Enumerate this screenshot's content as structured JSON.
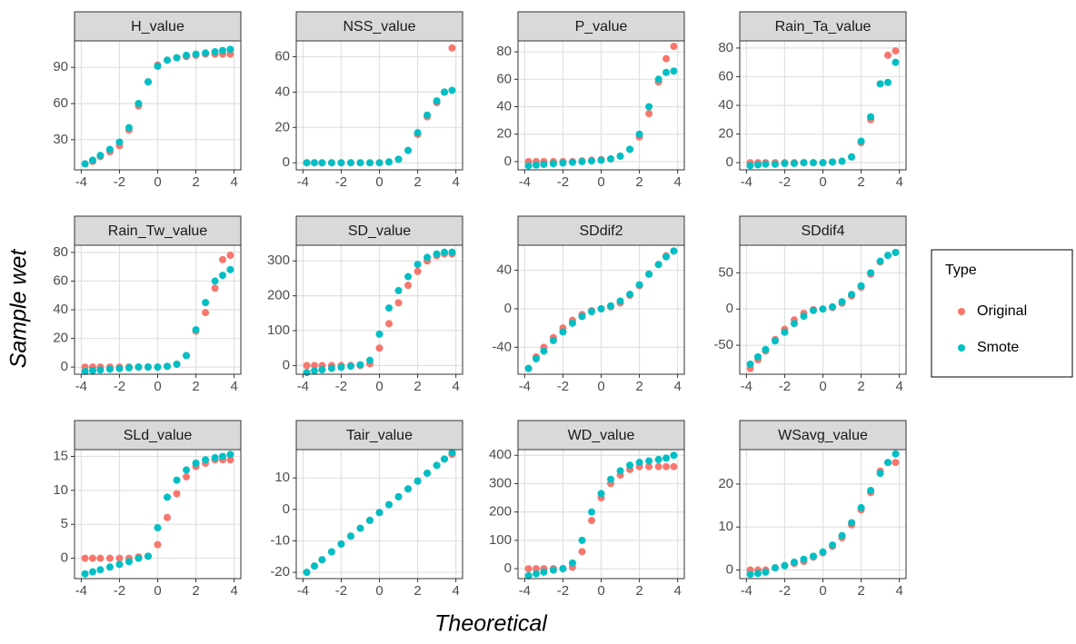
{
  "x_label": "Theoretical",
  "y_label": "Sample wet",
  "legend_title": "Type",
  "chart_data": [
    {
      "type": "scatter",
      "title": "H_value",
      "xlim": [
        -4.35,
        4.35
      ],
      "xticks": [
        -4,
        -2,
        0,
        2,
        4
      ],
      "ylim": [
        5,
        112
      ],
      "yticks": [
        30,
        60,
        90
      ],
      "grid": true,
      "x": [
        -3.8,
        -3.4,
        -3,
        -2.5,
        -2,
        -1.5,
        -1,
        -0.5,
        0,
        0.5,
        1,
        1.5,
        2,
        2.5,
        3,
        3.4,
        3.8
      ],
      "series": [
        {
          "name": "Original",
          "color": "#f8766d",
          "values": [
            10,
            12,
            16,
            20,
            25,
            38,
            58,
            78,
            92,
            96,
            98,
            99,
            100,
            101,
            101,
            101,
            101
          ]
        },
        {
          "name": "Smote",
          "color": "#00bfc4",
          "values": [
            10,
            13,
            17,
            22,
            28,
            40,
            60,
            78,
            91,
            96,
            98,
            100,
            101,
            102,
            103,
            104,
            105
          ]
        }
      ]
    },
    {
      "type": "scatter",
      "title": "NSS_value",
      "xlim": [
        -4.35,
        4.35
      ],
      "xticks": [
        -4,
        -2,
        0,
        2,
        4
      ],
      "ylim": [
        -4,
        69
      ],
      "yticks": [
        0,
        20,
        40,
        60
      ],
      "grid": true,
      "x": [
        -3.8,
        -3.4,
        -3,
        -2.5,
        -2,
        -1.5,
        -1,
        -0.5,
        0,
        0.5,
        1,
        1.5,
        2,
        2.5,
        3,
        3.4,
        3.8
      ],
      "series": [
        {
          "name": "Original",
          "color": "#f8766d",
          "values": [
            0,
            0,
            0,
            0,
            0,
            0,
            0,
            0,
            0,
            0.5,
            2,
            7,
            16,
            26,
            34,
            40,
            65
          ]
        },
        {
          "name": "Smote",
          "color": "#00bfc4",
          "values": [
            0,
            0,
            0,
            0,
            0,
            0,
            0,
            0,
            0,
            0.5,
            2,
            7,
            17,
            27,
            35,
            40,
            41
          ]
        }
      ]
    },
    {
      "type": "scatter",
      "title": "P_value",
      "xlim": [
        -4.35,
        4.35
      ],
      "xticks": [
        -4,
        -2,
        0,
        2,
        4
      ],
      "ylim": [
        -6,
        88
      ],
      "yticks": [
        0,
        20,
        40,
        60,
        80
      ],
      "grid": true,
      "x": [
        -3.8,
        -3.4,
        -3,
        -2.5,
        -2,
        -1.5,
        -1,
        -0.5,
        0,
        0.5,
        1,
        1.5,
        2,
        2.5,
        3,
        3.4,
        3.8
      ],
      "series": [
        {
          "name": "Original",
          "color": "#f8766d",
          "values": [
            0,
            0,
            0,
            0,
            0,
            0,
            0.5,
            1,
            1.5,
            2,
            4,
            9,
            18,
            35,
            58,
            75,
            84
          ]
        },
        {
          "name": "Smote",
          "color": "#00bfc4",
          "values": [
            -3,
            -2.5,
            -2,
            -1.5,
            -1,
            -0.5,
            0,
            0.5,
            1,
            2,
            4,
            9,
            20,
            40,
            60,
            65,
            66
          ]
        }
      ]
    },
    {
      "type": "scatter",
      "title": "Rain_Ta_value",
      "xlim": [
        -4.35,
        4.35
      ],
      "xticks": [
        -4,
        -2,
        0,
        2,
        4
      ],
      "ylim": [
        -5,
        85
      ],
      "yticks": [
        0,
        20,
        40,
        60,
        80
      ],
      "grid": true,
      "x": [
        -3.8,
        -3.4,
        -3,
        -2.5,
        -2,
        -1.5,
        -1,
        -0.5,
        0,
        0.5,
        1,
        1.5,
        2,
        2.5,
        3,
        3.4,
        3.8
      ],
      "series": [
        {
          "name": "Original",
          "color": "#f8766d",
          "values": [
            0,
            0,
            0,
            0,
            0,
            0,
            0,
            0,
            0,
            0.5,
            1,
            4,
            14,
            30,
            55,
            75,
            78
          ]
        },
        {
          "name": "Smote",
          "color": "#00bfc4",
          "values": [
            -2,
            -1.5,
            -1,
            -1,
            -0.5,
            -0.5,
            0,
            0,
            0,
            0.5,
            1,
            4,
            15,
            32,
            55,
            56,
            70
          ]
        }
      ]
    },
    {
      "type": "scatter",
      "title": "Rain_Tw_value",
      "xlim": [
        -4.35,
        4.35
      ],
      "xticks": [
        -4,
        -2,
        0,
        2,
        4
      ],
      "ylim": [
        -5,
        85
      ],
      "yticks": [
        0,
        20,
        40,
        60,
        80
      ],
      "grid": true,
      "x": [
        -3.8,
        -3.4,
        -3,
        -2.5,
        -2,
        -1.5,
        -1,
        -0.5,
        0,
        0.5,
        1,
        1.5,
        2,
        2.5,
        3,
        3.4,
        3.8
      ],
      "series": [
        {
          "name": "Original",
          "color": "#f8766d",
          "values": [
            0,
            0,
            0,
            0,
            0,
            0,
            0,
            0,
            0,
            0.5,
            2,
            8,
            25,
            38,
            55,
            75,
            78
          ]
        },
        {
          "name": "Smote",
          "color": "#00bfc4",
          "values": [
            -3,
            -2.5,
            -2,
            -1.5,
            -1,
            -0.5,
            0,
            0,
            0,
            0.5,
            2,
            8,
            26,
            45,
            60,
            64,
            68
          ]
        }
      ]
    },
    {
      "type": "scatter",
      "title": "SD_value",
      "xlim": [
        -4.35,
        4.35
      ],
      "xticks": [
        -4,
        -2,
        0,
        2,
        4
      ],
      "ylim": [
        -25,
        345
      ],
      "yticks": [
        0,
        100,
        200,
        300
      ],
      "grid": true,
      "x": [
        -3.8,
        -3.4,
        -3,
        -2.5,
        -2,
        -1.5,
        -1,
        -0.5,
        0,
        0.5,
        1,
        1.5,
        2,
        2.5,
        3,
        3.4,
        3.8
      ],
      "series": [
        {
          "name": "Original",
          "color": "#f8766d",
          "values": [
            0,
            0,
            0,
            0,
            0,
            0,
            0,
            5,
            50,
            120,
            180,
            230,
            270,
            300,
            315,
            320,
            320
          ]
        },
        {
          "name": "Smote",
          "color": "#00bfc4",
          "values": [
            -20,
            -15,
            -12,
            -8,
            -5,
            -2,
            2,
            15,
            90,
            165,
            215,
            255,
            290,
            310,
            320,
            325,
            325
          ]
        }
      ]
    },
    {
      "type": "scatter",
      "title": "SDdif2",
      "xlim": [
        -4.35,
        4.35
      ],
      "xticks": [
        -4,
        -2,
        0,
        2,
        4
      ],
      "ylim": [
        -68,
        66
      ],
      "yticks": [
        -40,
        0,
        40
      ],
      "grid": true,
      "x": [
        -3.8,
        -3.4,
        -3,
        -2.5,
        -2,
        -1.5,
        -1,
        -0.5,
        0,
        0.5,
        1,
        1.5,
        2,
        2.5,
        3,
        3.4,
        3.8
      ],
      "series": [
        {
          "name": "Original",
          "color": "#f8766d",
          "values": [
            -62,
            -50,
            -40,
            -30,
            -20,
            -12,
            -6,
            -2,
            0,
            2,
            6,
            14,
            24,
            36,
            46,
            55,
            60
          ]
        },
        {
          "name": "Smote",
          "color": "#00bfc4",
          "values": [
            -62,
            -52,
            -44,
            -33,
            -24,
            -15,
            -8,
            -3,
            0,
            3,
            8,
            15,
            25,
            36,
            46,
            54,
            60
          ]
        }
      ]
    },
    {
      "type": "scatter",
      "title": "SDdif4",
      "xlim": [
        -4.35,
        4.35
      ],
      "xticks": [
        -4,
        -2,
        0,
        2,
        4
      ],
      "ylim": [
        -90,
        88
      ],
      "yticks": [
        -50,
        0,
        50
      ],
      "grid": true,
      "x": [
        -3.8,
        -3.4,
        -3,
        -2.5,
        -2,
        -1.5,
        -1,
        -0.5,
        0,
        0.5,
        1,
        1.5,
        2,
        2.5,
        3,
        3.4,
        3.8
      ],
      "series": [
        {
          "name": "Original",
          "color": "#f8766d",
          "values": [
            -82,
            -70,
            -58,
            -42,
            -28,
            -15,
            -6,
            -1,
            0,
            2,
            8,
            18,
            30,
            48,
            65,
            74,
            78
          ]
        },
        {
          "name": "Smote",
          "color": "#00bfc4",
          "values": [
            -76,
            -66,
            -56,
            -44,
            -32,
            -20,
            -10,
            -2,
            0,
            3,
            10,
            20,
            32,
            50,
            66,
            74,
            78
          ]
        }
      ]
    },
    {
      "type": "scatter",
      "title": "SLd_value",
      "xlim": [
        -4.35,
        4.35
      ],
      "xticks": [
        -4,
        -2,
        0,
        2,
        4
      ],
      "ylim": [
        -3,
        16
      ],
      "yticks": [
        0,
        5,
        10,
        15
      ],
      "grid": true,
      "x": [
        -3.8,
        -3.4,
        -3,
        -2.5,
        -2,
        -1.5,
        -1,
        -0.5,
        0,
        0.5,
        1,
        1.5,
        2,
        2.5,
        3,
        3.4,
        3.8
      ],
      "series": [
        {
          "name": "Original",
          "color": "#f8766d",
          "values": [
            0,
            0,
            0,
            0,
            0,
            0,
            0.2,
            0.3,
            2,
            6,
            9.5,
            12,
            13.5,
            14,
            14.5,
            14.5,
            14.5
          ]
        },
        {
          "name": "Smote",
          "color": "#00bfc4",
          "values": [
            -2.3,
            -2,
            -1.7,
            -1.3,
            -0.9,
            -0.5,
            0,
            0.3,
            4.5,
            9,
            11.5,
            13,
            14,
            14.5,
            14.8,
            15,
            15.3
          ]
        }
      ]
    },
    {
      "type": "scatter",
      "title": "Tair_value",
      "xlim": [
        -4.35,
        4.35
      ],
      "xticks": [
        -4,
        -2,
        0,
        2,
        4
      ],
      "ylim": [
        -22,
        19
      ],
      "yticks": [
        -20,
        -10,
        0,
        10
      ],
      "grid": true,
      "x": [
        -3.8,
        -3.4,
        -3,
        -2.5,
        -2,
        -1.5,
        -1,
        -0.5,
        0,
        0.5,
        1,
        1.5,
        2,
        2.5,
        3,
        3.4,
        3.8
      ],
      "series": [
        {
          "name": "Original",
          "color": "#f8766d",
          "values": [
            -20,
            -18,
            -16,
            -13.5,
            -11,
            -8.5,
            -6,
            -3.5,
            -1,
            1.5,
            4,
            6.5,
            9,
            11.5,
            14,
            16,
            17.5
          ]
        },
        {
          "name": "Smote",
          "color": "#00bfc4",
          "values": [
            -20,
            -18,
            -16,
            -13.5,
            -11,
            -8.5,
            -6,
            -3.5,
            -1,
            1.5,
            4,
            6.5,
            9,
            11.5,
            14,
            16,
            18
          ]
        }
      ]
    },
    {
      "type": "scatter",
      "title": "WD_value",
      "xlim": [
        -4.35,
        4.35
      ],
      "xticks": [
        -4,
        -2,
        0,
        2,
        4
      ],
      "ylim": [
        -35,
        420
      ],
      "yticks": [
        0,
        100,
        200,
        300,
        400
      ],
      "grid": true,
      "x": [
        -3.8,
        -3.4,
        -3,
        -2.5,
        -2,
        -1.5,
        -1,
        -0.5,
        0,
        0.5,
        1,
        1.5,
        2,
        2.5,
        3,
        3.4,
        3.8
      ],
      "series": [
        {
          "name": "Original",
          "color": "#f8766d",
          "values": [
            0,
            0,
            0,
            0,
            0,
            5,
            60,
            170,
            250,
            300,
            330,
            350,
            360,
            360,
            360,
            360,
            360
          ]
        },
        {
          "name": "Smote",
          "color": "#00bfc4",
          "values": [
            -25,
            -18,
            -12,
            -5,
            0,
            20,
            100,
            200,
            265,
            315,
            345,
            365,
            375,
            380,
            385,
            390,
            400
          ]
        }
      ]
    },
    {
      "type": "scatter",
      "title": "WSavg_value",
      "xlim": [
        -4.35,
        4.35
      ],
      "xticks": [
        -4,
        -2,
        0,
        2,
        4
      ],
      "ylim": [
        -2,
        28
      ],
      "yticks": [
        0,
        10,
        20
      ],
      "grid": true,
      "x": [
        -3.8,
        -3.4,
        -3,
        -2.5,
        -2,
        -1.5,
        -1,
        -0.5,
        0,
        0.5,
        1,
        1.5,
        2,
        2.5,
        3,
        3.4,
        3.8
      ],
      "series": [
        {
          "name": "Original",
          "color": "#f8766d",
          "values": [
            0,
            0,
            0,
            0.5,
            1,
            1.5,
            2,
            3,
            4,
            5.5,
            7.5,
            10.5,
            14,
            18,
            23,
            25,
            25
          ]
        },
        {
          "name": "Smote",
          "color": "#00bfc4",
          "values": [
            -1,
            -0.8,
            -0.5,
            0.5,
            1,
            1.8,
            2.5,
            3.2,
            4.2,
            5.8,
            8,
            11,
            14.5,
            18.5,
            22.5,
            25,
            27
          ]
        }
      ]
    }
  ]
}
